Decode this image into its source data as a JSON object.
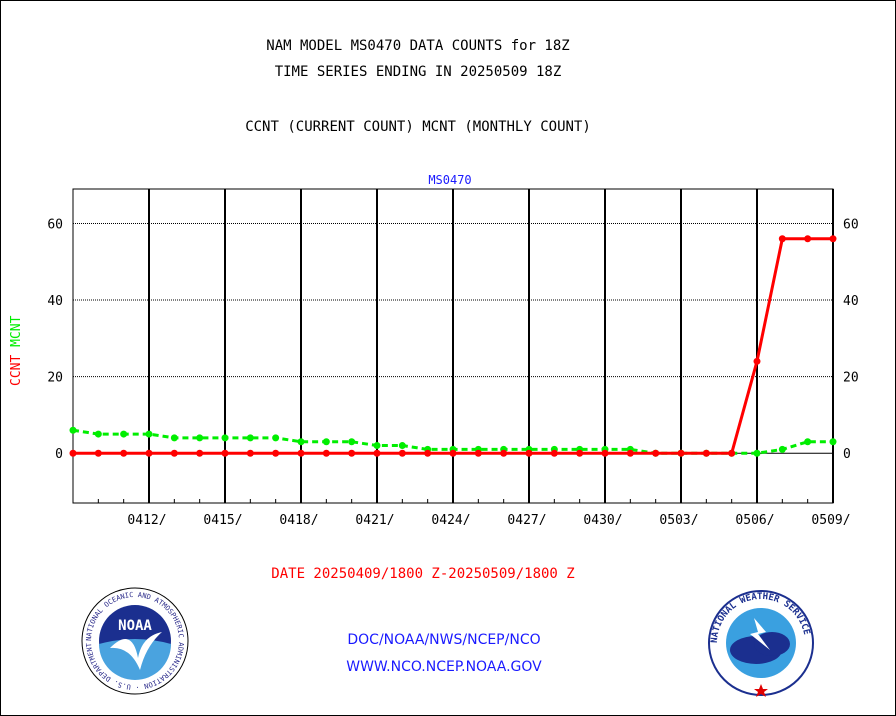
{
  "titles": {
    "line1": "NAM MODEL MS0470 DATA COUNTS for 18Z",
    "line2": "TIME SERIES ENDING IN 20250509 18Z",
    "line3": "CCNT (CURRENT COUNT) MCNT (MONTHLY COUNT)"
  },
  "chart_data": {
    "type": "line",
    "title": "MS0470",
    "xlabel": "DATE 20250409/1800 Z-20250509/1800 Z",
    "ylabel_parts": [
      "CCNT",
      "MCNT"
    ],
    "x_tick_labels": [
      "0412/",
      "0415/",
      "0418/",
      "0421/",
      "0424/",
      "0427/",
      "0430/",
      "0503/",
      "0506/",
      "0509/"
    ],
    "x_range_days": [
      0,
      30
    ],
    "x_tick_days": [
      3,
      6,
      9,
      12,
      15,
      18,
      21,
      24,
      27,
      30
    ],
    "ylim": [
      -13,
      69
    ],
    "y_ticks": [
      0,
      20,
      40,
      60
    ],
    "series": [
      {
        "name": "CCNT",
        "color": "#ff0000",
        "days": [
          0,
          1,
          2,
          3,
          4,
          5,
          6,
          7,
          8,
          9,
          10,
          11,
          12,
          13,
          14,
          15,
          16,
          17,
          18,
          19,
          20,
          21,
          22,
          23,
          24,
          25,
          26,
          27,
          28,
          29,
          30
        ],
        "values": [
          0,
          0,
          0,
          0,
          0,
          0,
          0,
          0,
          0,
          0,
          0,
          0,
          0,
          0,
          0,
          0,
          0,
          0,
          0,
          0,
          0,
          0,
          0,
          0,
          0,
          0,
          0,
          24,
          56,
          56,
          56
        ]
      },
      {
        "name": "MCNT",
        "color": "#00ee00",
        "days": [
          0,
          1,
          2,
          3,
          4,
          5,
          6,
          7,
          8,
          9,
          10,
          11,
          12,
          13,
          14,
          15,
          16,
          17,
          18,
          19,
          20,
          21,
          22,
          23,
          24,
          25,
          26,
          27,
          28,
          29,
          30
        ],
        "values": [
          6,
          5,
          5,
          5,
          4,
          4,
          4,
          4,
          4,
          3,
          3,
          3,
          2,
          2,
          1,
          1,
          1,
          1,
          1,
          1,
          1,
          1,
          1,
          0,
          0,
          0,
          0,
          0,
          1,
          3,
          3
        ]
      }
    ]
  },
  "footer": {
    "org_line": "DOC/NOAA/NWS/NCEP/NCO",
    "url_line": "WWW.NCO.NCEP.NOAA.GOV"
  },
  "logos": {
    "left": {
      "text": "NOAA",
      "ring_text": "NATIONAL OCEANIC AND ATMOSPHERIC ADMINISTRATION · U.S. DEPARTMENT OF COMMERCE"
    },
    "right": {
      "ring_text": "NATIONAL WEATHER SERVICE"
    }
  }
}
